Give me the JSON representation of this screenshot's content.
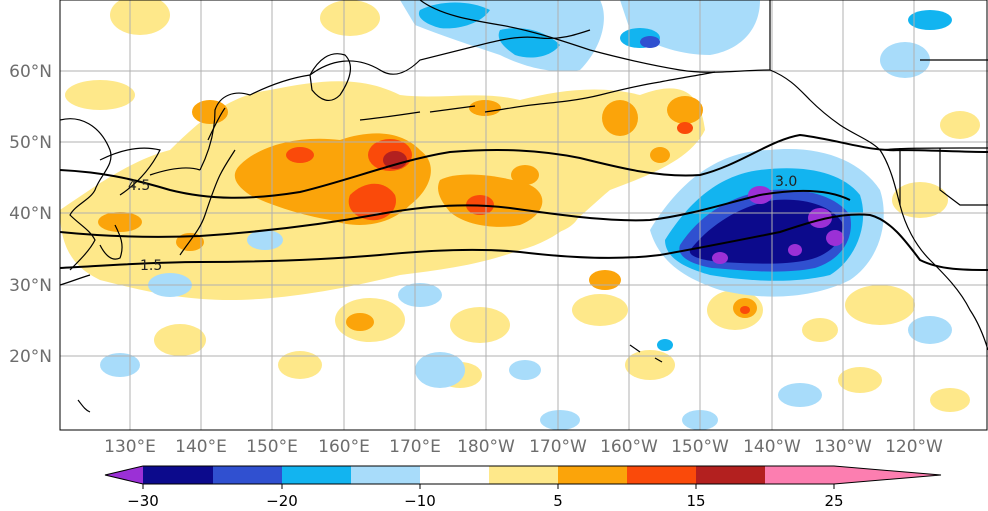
{
  "map": {
    "latitude_labels": [
      "60°N",
      "50°N",
      "40°N",
      "30°N",
      "20°N"
    ],
    "longitude_labels": [
      "130°E",
      "140°E",
      "150°E",
      "160°E",
      "170°E",
      "180°W",
      "170°W",
      "160°W",
      "150°W",
      "140°W",
      "130°W",
      "120°W"
    ],
    "contour_labels": [
      "4.5",
      "3.0",
      "1.5"
    ]
  },
  "colorbar": {
    "tick_labels": [
      "−30",
      "−20",
      "−10",
      "5",
      "15",
      "25"
    ],
    "colors": [
      "#9b30d6",
      "#0c0a8c",
      "#3050d0",
      "#12b4f0",
      "#a8dcfa",
      "#ffffff",
      "#fee88a",
      "#fba40a",
      "#fa4a0a",
      "#b3201f",
      "#fc7eb0"
    ]
  }
}
